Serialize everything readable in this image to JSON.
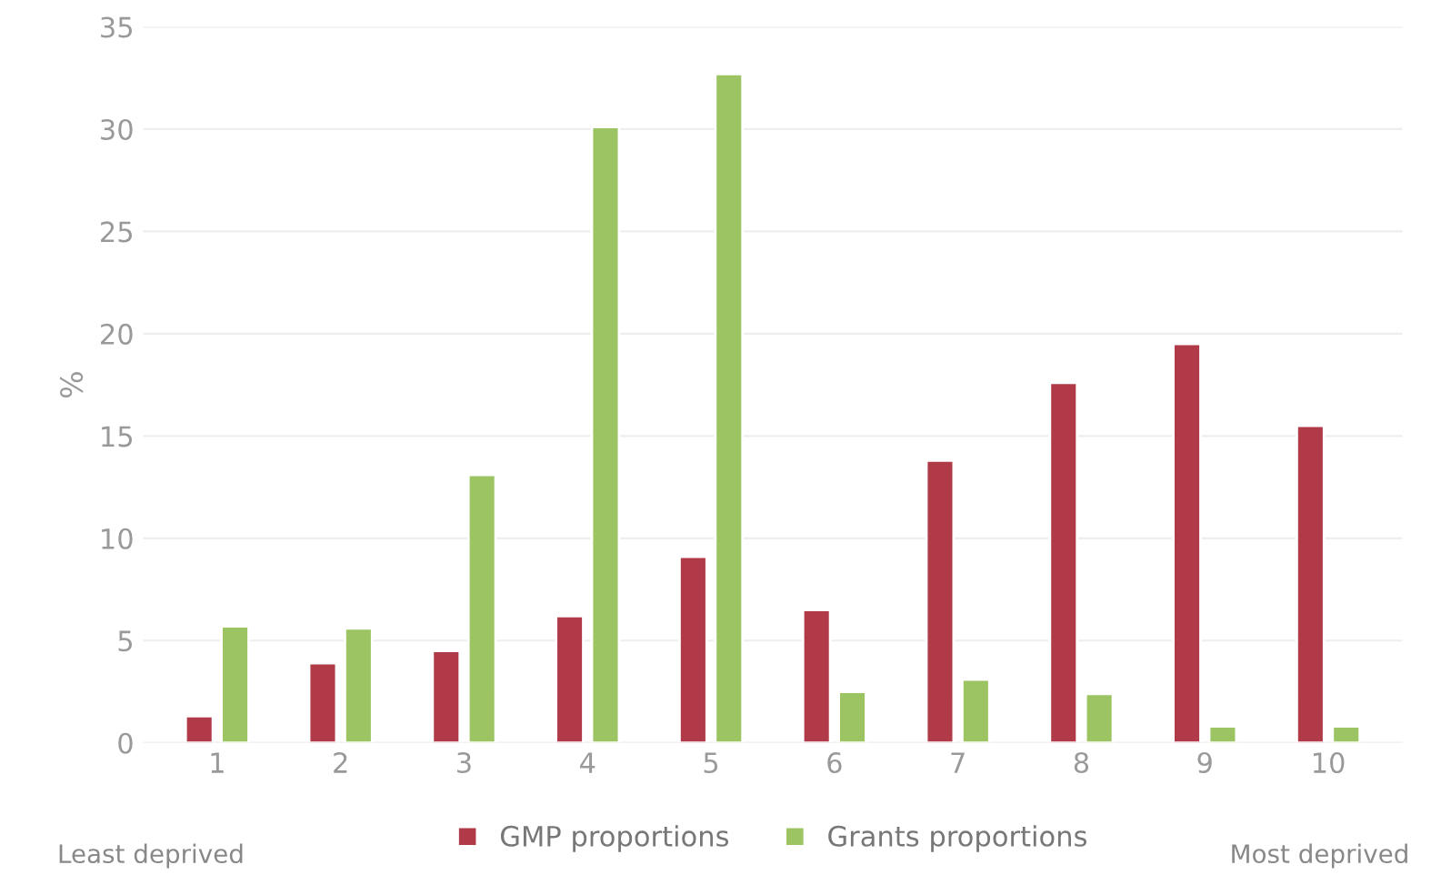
{
  "chart_data": {
    "type": "bar",
    "ylabel": "%",
    "categories": [
      "1",
      "2",
      "3",
      "4",
      "5",
      "6",
      "7",
      "8",
      "9",
      "10"
    ],
    "series": [
      {
        "name": "GMP proportions",
        "color": "#b03a48",
        "values": [
          1.3,
          3.9,
          4.5,
          6.2,
          9.1,
          6.5,
          13.8,
          17.6,
          19.5,
          15.5
        ]
      },
      {
        "name": "Grants proportions",
        "color": "#9cc463",
        "values": [
          5.7,
          5.6,
          13.1,
          30.1,
          32.7,
          2.5,
          3.1,
          2.4,
          0.8,
          0.8
        ]
      }
    ],
    "ylim": [
      0,
      35
    ],
    "yticks": [
      0,
      5,
      10,
      15,
      20,
      25,
      30,
      35
    ],
    "grid": "y",
    "legend": "bottom",
    "annotations": [
      "Least deprived",
      "Most deprived"
    ]
  }
}
